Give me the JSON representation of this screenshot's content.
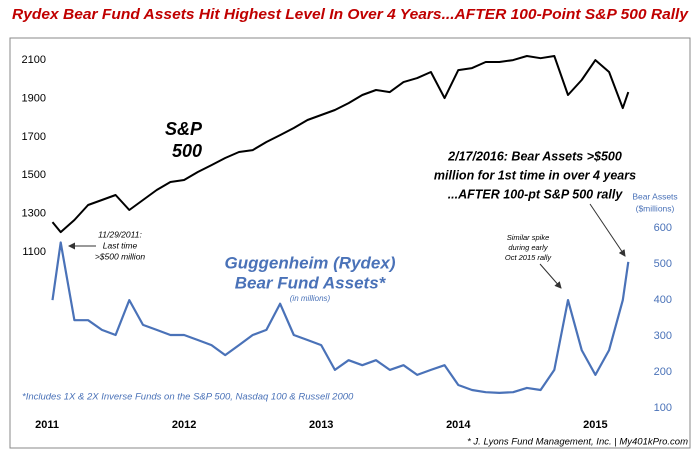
{
  "chart_data": {
    "type": "line",
    "title": "Rydex Bear Fund Assets Hit Highest Level In Over 4 Years...AFTER 100-Point S&P 500 Rally",
    "x": [
      2011.04,
      2011.1,
      2011.2,
      2011.3,
      2011.4,
      2011.5,
      2011.6,
      2011.7,
      2011.8,
      2011.9,
      2012.0,
      2012.1,
      2012.2,
      2012.3,
      2012.4,
      2012.5,
      2012.6,
      2012.7,
      2012.8,
      2012.9,
      2013.0,
      2013.1,
      2013.2,
      2013.3,
      2013.4,
      2013.5,
      2013.6,
      2013.7,
      2013.8,
      2013.9,
      2014.0,
      2014.1,
      2014.2,
      2014.3,
      2014.4,
      2014.5,
      2014.6,
      2014.7,
      2014.8,
      2014.9,
      2015.0,
      2015.1,
      2015.2,
      2015.24
    ],
    "series": [
      {
        "label": [
          "S&P",
          "500"
        ],
        "color": "#000000",
        "values": [
          1256,
          1204,
          1267,
          1345,
          1371,
          1397,
          1319,
          1371,
          1423,
          1465,
          1475,
          1517,
          1553,
          1590,
          1621,
          1631,
          1673,
          1709,
          1746,
          1788,
          1814,
          1840,
          1876,
          1918,
          1944,
          1933,
          1985,
          2006,
          2038,
          1902,
          2048,
          2058,
          2090,
          2090,
          2100,
          2121,
          2110,
          2121,
          1918,
          1996,
          2100,
          2038,
          1850,
          1933
        ]
      },
      {
        "label": [
          "Guggenheim (Rydex)",
          "Bear Fund Assets*",
          "(in millions)"
        ],
        "color": "#4a72b8",
        "axis": "y2",
        "values": [
          400,
          560,
          344,
          344,
          317,
          303,
          400,
          331,
          317,
          303,
          303,
          289,
          275,
          247,
          275,
          303,
          317,
          390,
          303,
          289,
          275,
          206,
          233,
          219,
          233,
          206,
          219,
          192,
          206,
          219,
          164,
          150,
          144,
          142,
          144,
          156,
          150,
          206,
          400,
          261,
          192,
          261,
          400,
          506
        ]
      }
    ],
    "xlim": [
      2010.73,
      2015.69
    ],
    "xticks": [
      2011,
      2012,
      2013,
      2014,
      2015
    ],
    "ylim": [
      79,
      2215
    ],
    "yticks": [
      1100,
      1300,
      1500,
      1700,
      1900,
      2100
    ],
    "y2lim": [
      -11,
      1128
    ],
    "y2ticks": [
      100,
      200,
      300,
      400,
      500,
      600
    ],
    "y2_label": [
      "Bear Assets",
      "($millions)"
    ],
    "grid": false,
    "annotations": {
      "latest": [
        "2/17/2016: Bear Assets >$500",
        "million for 1st time in over 4 years",
        "...AFTER 100-pt S&P 500 rally"
      ],
      "last_time": [
        "11/29/2011:",
        "Last time",
        ">$500 million"
      ],
      "similar": [
        "Similar spike",
        "during early",
        "Oct 2015 rally"
      ],
      "footnote": "*Includes 1X & 2X Inverse Funds on the S&P 500, Nasdaq 100 & Russell 2000",
      "source": "* J. Lyons Fund Management, Inc. | My401kPro.com"
    }
  }
}
